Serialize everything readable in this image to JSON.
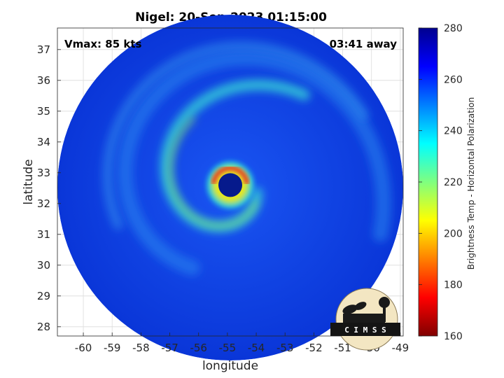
{
  "chart_data": {
    "type": "heatmap",
    "title": "Nigel: 20-Sep-2023 01:15:00",
    "xlabel": "longitude",
    "ylabel": "latitude",
    "xlim": [
      -60.9,
      -48.9
    ],
    "ylim": [
      27.7,
      37.7
    ],
    "xticks": [
      "-60",
      "-59",
      "-58",
      "-57",
      "-56",
      "-55",
      "-54",
      "-53",
      "-52",
      "-51",
      "-50",
      "-49"
    ],
    "yticks": [
      "28",
      "29",
      "30",
      "31",
      "32",
      "33",
      "34",
      "35",
      "36",
      "37"
    ],
    "xtick_values": [
      -60,
      -59,
      -58,
      -57,
      -56,
      -55,
      -54,
      -53,
      -52,
      -51,
      -50,
      -49
    ],
    "ytick_values": [
      28,
      29,
      30,
      31,
      32,
      33,
      34,
      35,
      36,
      37
    ],
    "grid": true,
    "annotation_left": "Vmax: 85 kts",
    "annotation_right": "03:41 away",
    "colorbar": {
      "label": "Brightness Temp - Horizontal Polarization",
      "range": [
        160,
        280
      ],
      "ticks": [
        "160",
        "180",
        "200",
        "220",
        "240",
        "260",
        "280"
      ],
      "tick_values": [
        160,
        180,
        200,
        220,
        240,
        260,
        280
      ],
      "colormap": "jet"
    },
    "storm_center": {
      "lon": -54.9,
      "lat": 32.6
    },
    "features": {
      "eye_temp_k": 275,
      "eyewall_min_temp_k": 185,
      "spiral_band_temp_k": 220,
      "background_temp_k": 265
    }
  },
  "logo_text": "C I M S S",
  "colors": {
    "background_blue": "#0a3fe6",
    "eye": "#061a8c",
    "eyewall_red": "#e8401a",
    "eyewall_yellow": "#e6e61a",
    "band_cyan": "#1ec8e6"
  }
}
